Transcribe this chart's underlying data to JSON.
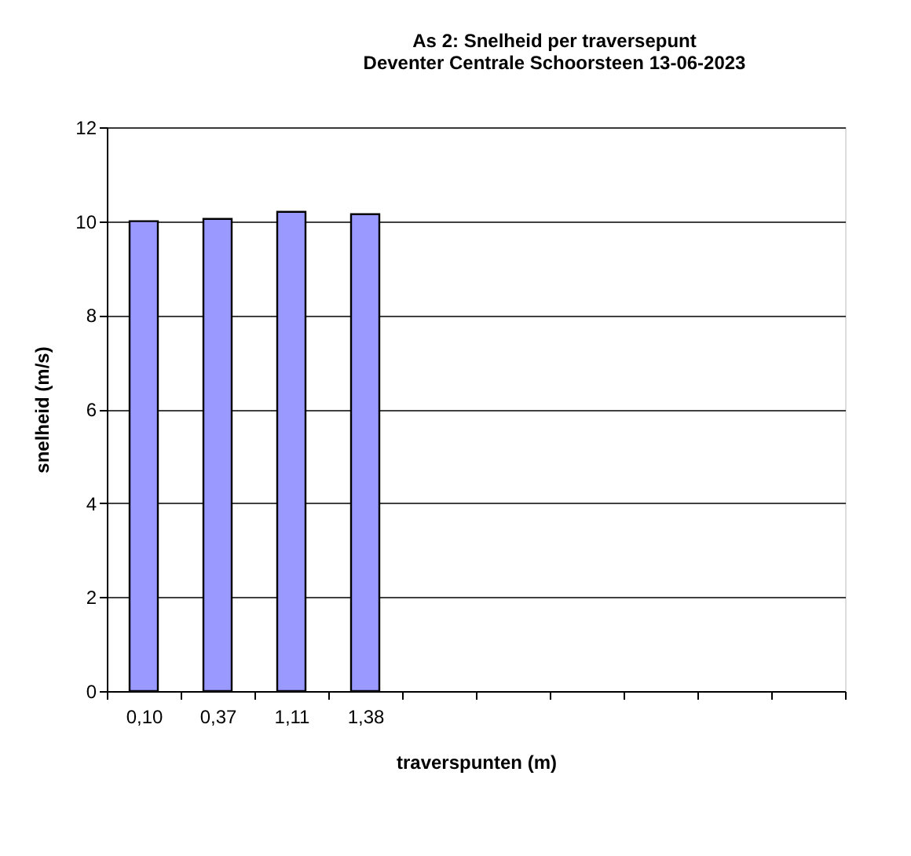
{
  "chart_data": {
    "type": "bar",
    "title": "As 2: Snelheid per traversepunt",
    "subtitle": "Deventer Centrale Schoorsteen 13-06-2023",
    "xlabel": "traverspunten (m)",
    "ylabel": "snelheid (m/s)",
    "categories": [
      "0,10",
      "0,37",
      "1,11",
      "1,38",
      null,
      null,
      null,
      null,
      null,
      null
    ],
    "values": [
      10.0,
      10.05,
      10.2,
      10.15,
      null,
      null,
      null,
      null,
      null,
      null
    ],
    "color": "#9999ff",
    "ylim": [
      0,
      12
    ],
    "yticks": [
      0,
      2,
      4,
      6,
      8,
      10,
      12
    ],
    "grid": "y"
  }
}
